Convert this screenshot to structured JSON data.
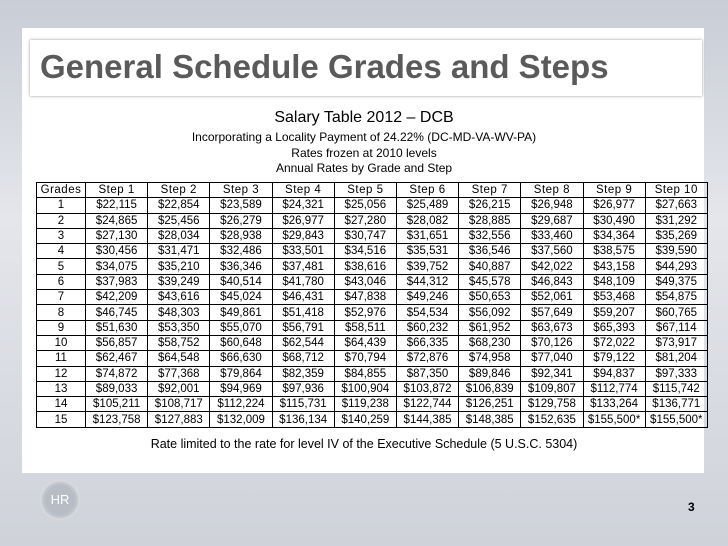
{
  "header": {
    "title": "General Schedule Grades and Steps"
  },
  "subtitle": {
    "line1": "Salary Table 2012 – DCB",
    "line2": "Incorporating a Locality Payment of 24.22% (DC-MD-VA-WV-PA)",
    "line3": "Rates frozen at 2010 levels",
    "line4": "Annual Rates by Grade and Step"
  },
  "table": {
    "columns": [
      "Grades",
      "Step 1",
      "Step 2",
      "Step 3",
      "Step 4",
      "Step 5",
      "Step 6",
      "Step 7",
      "Step 8",
      "Step 9",
      "Step 10"
    ],
    "rows": [
      [
        "1",
        "$22,115",
        "$22,854",
        "$23,589",
        "$24,321",
        "$25,056",
        "$25,489",
        "$26,215",
        "$26,948",
        "$26,977",
        "$27,663"
      ],
      [
        "2",
        "$24,865",
        "$25,456",
        "$26,279",
        "$26,977",
        "$27,280",
        "$28,082",
        "$28,885",
        "$29,687",
        "$30,490",
        "$31,292"
      ],
      [
        "3",
        "$27,130",
        "$28,034",
        "$28,938",
        "$29,843",
        "$30,747",
        "$31,651",
        "$32,556",
        "$33,460",
        "$34,364",
        "$35,269"
      ],
      [
        "4",
        "$30,456",
        "$31,471",
        "$32,486",
        "$33,501",
        "$34,516",
        "$35,531",
        "$36,546",
        "$37,560",
        "$38,575",
        "$39,590"
      ],
      [
        "5",
        "$34,075",
        "$35,210",
        "$36,346",
        "$37,481",
        "$38,616",
        "$39,752",
        "$40,887",
        "$42,022",
        "$43,158",
        "$44,293"
      ],
      [
        "6",
        "$37,983",
        "$39,249",
        "$40,514",
        "$41,780",
        "$43,046",
        "$44,312",
        "$45,578",
        "$46,843",
        "$48,109",
        "$49,375"
      ],
      [
        "7",
        "$42,209",
        "$43,616",
        "$45,024",
        "$46,431",
        "$47,838",
        "$49,246",
        "$50,653",
        "$52,061",
        "$53,468",
        "$54,875"
      ],
      [
        "8",
        "$46,745",
        "$48,303",
        "$49,861",
        "$51,418",
        "$52,976",
        "$54,534",
        "$56,092",
        "$57,649",
        "$59,207",
        "$60,765"
      ],
      [
        "9",
        "$51,630",
        "$53,350",
        "$55,070",
        "$56,791",
        "$58,511",
        "$60,232",
        "$61,952",
        "$63,673",
        "$65,393",
        "$67,114"
      ],
      [
        "10",
        "$56,857",
        "$58,752",
        "$60,648",
        "$62,544",
        "$64,439",
        "$66,335",
        "$68,230",
        "$70,126",
        "$72,022",
        "$73,917"
      ],
      [
        "11",
        "$62,467",
        "$64,548",
        "$66,630",
        "$68,712",
        "$70,794",
        "$72,876",
        "$74,958",
        "$77,040",
        "$79,122",
        "$81,204"
      ],
      [
        "12",
        "$74,872",
        "$77,368",
        "$79,864",
        "$82,359",
        "$84,855",
        "$87,350",
        "$89,846",
        "$92,341",
        "$94,837",
        "$97,333"
      ],
      [
        "13",
        "$89,033",
        "$92,001",
        "$94,969",
        "$97,936",
        "$100,904",
        "$103,872",
        "$106,839",
        "$109,807",
        "$112,774",
        "$115,742"
      ],
      [
        "14",
        "$105,211",
        "$108,717",
        "$112,224",
        "$115,731",
        "$119,238",
        "$122,744",
        "$126,251",
        "$129,758",
        "$133,264",
        "$136,771"
      ],
      [
        "15",
        "$123,758",
        "$127,883",
        "$132,009",
        "$136,134",
        "$140,259",
        "$144,385",
        "$148,385",
        "$152,635",
        "$155,500*",
        "$155,500*"
      ]
    ]
  },
  "footnote": "Rate limited to the rate for level IV of the Executive Schedule (5 U.S.C. 5304)",
  "logo": "HR",
  "page_number": "3"
}
